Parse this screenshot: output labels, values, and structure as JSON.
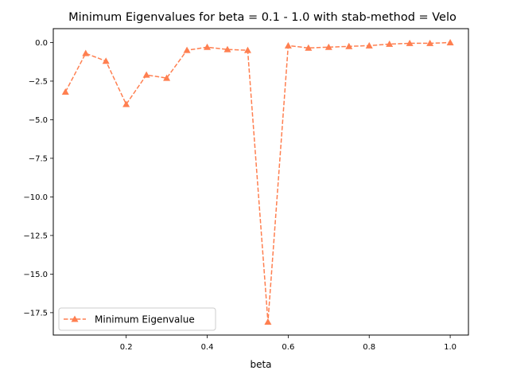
{
  "chart_data": {
    "type": "line",
    "title": "Minimum Eigenvalues for beta = 0.1 - 1.0 with stab-method = Velo",
    "xlabel": "beta",
    "ylabel": "",
    "xlim": [
      0.02,
      1.045
    ],
    "ylim": [
      -18.95,
      0.9
    ],
    "xticks": [
      0.2,
      0.4,
      0.6,
      0.8,
      1.0
    ],
    "xtick_labels": [
      "0.2",
      "0.4",
      "0.6",
      "0.8",
      "1.0"
    ],
    "yticks": [
      0.0,
      -2.5,
      -5.0,
      -7.5,
      -10.0,
      -12.5,
      -15.0,
      -17.5
    ],
    "ytick_labels": [
      "0.0",
      "−2.5",
      "−5.0",
      "−7.5",
      "−10.0",
      "−12.5",
      "−15.0",
      "−17.5"
    ],
    "grid": false,
    "legend_position": "lower-left",
    "series": [
      {
        "name": "Minimum Eigenvalue",
        "color": "#ff7f50",
        "line_style": "dashed",
        "marker": "triangle-up",
        "x": [
          0.05,
          0.1,
          0.15,
          0.2,
          0.25,
          0.3,
          0.35,
          0.4,
          0.45,
          0.5,
          0.55,
          0.6,
          0.65,
          0.7,
          0.75,
          0.8,
          0.85,
          0.9,
          0.95,
          1.0
        ],
        "y": [
          -3.2,
          -0.7,
          -1.2,
          -4.0,
          -2.1,
          -2.3,
          -0.5,
          -0.3,
          -0.45,
          -0.5,
          -18.1,
          -0.2,
          -0.35,
          -0.3,
          -0.25,
          -0.2,
          -0.1,
          -0.05,
          -0.05,
          0.0
        ]
      }
    ]
  }
}
